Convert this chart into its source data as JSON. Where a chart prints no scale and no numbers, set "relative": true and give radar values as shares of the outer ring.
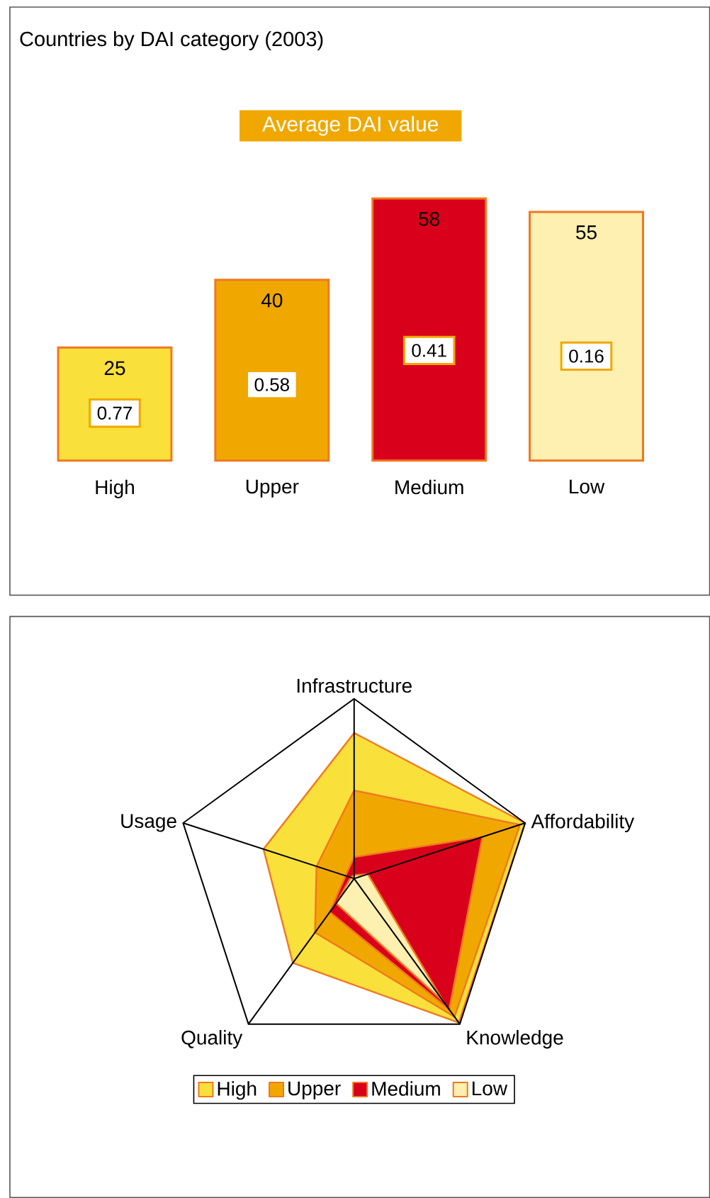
{
  "chart_data": [
    {
      "type": "bar",
      "title": "Countries by DAI category (2003)",
      "categories": [
        "High",
        "Upper",
        "Medium",
        "Low"
      ],
      "values": [
        25,
        40,
        58,
        55
      ],
      "colors": [
        "#f9e03b",
        "#f0a800",
        "#d9001b",
        "#fdf0b0"
      ],
      "data_labels": true,
      "annotations": [
        "Average DAI value",
        {
          "text": "0.77",
          "x": "High"
        },
        {
          "text": "0.58",
          "x": "Upper"
        },
        {
          "text": "0.41",
          "x": "Medium"
        },
        {
          "text": "0.16",
          "x": "Low"
        }
      ]
    },
    {
      "type": "radar",
      "categories": [
        "Infrastructure",
        "Affordability",
        "Knowledge",
        "Quality",
        "Usage"
      ],
      "relative": true,
      "legend": "bottom",
      "series": [
        {
          "name": "High",
          "color": "#f9e03b",
          "values": [
            0.81,
            1.0,
            0.99,
            0.58,
            0.53
          ]
        },
        {
          "name": "Upper",
          "color": "#f0a800",
          "values": [
            0.49,
            0.97,
            0.95,
            0.37,
            0.22
          ]
        },
        {
          "name": "Medium",
          "color": "#d9001b",
          "values": [
            0.12,
            0.75,
            0.9,
            0.23,
            0.05
          ]
        },
        {
          "name": "Low",
          "color": "#fdf0b0",
          "values": [
            0.02,
            0.08,
            0.85,
            0.17,
            0.02
          ]
        }
      ]
    }
  ]
}
